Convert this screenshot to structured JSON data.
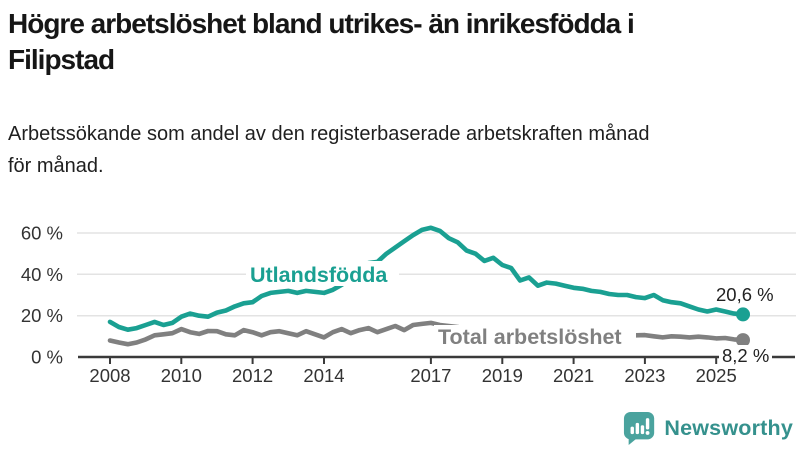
{
  "header": {
    "title_lines": [
      "Högre arbetslöshet bland utrikes- än inrikesfödda i",
      "Filipstad"
    ],
    "subtitle_lines": [
      "Arbetssökande som andel av den registerbaserade arbetskraften månad",
      "för månad."
    ]
  },
  "chart_data": {
    "type": "line",
    "title": "Högre arbetslöshet bland utrikes- än inrikesfödda i Filipstad",
    "subtitle": "Arbetssökande som andel av den registerbaserade arbetskraften månad för månad.",
    "xlabel": "",
    "ylabel": "",
    "x_unit": "year (monthly share of registered labour force, plotted quarterly)",
    "x": [
      2008.0,
      2008.25,
      2008.5,
      2008.75,
      2009.0,
      2009.25,
      2009.5,
      2009.75,
      2010.0,
      2010.25,
      2010.5,
      2010.75,
      2011.0,
      2011.25,
      2011.5,
      2011.75,
      2012.0,
      2012.25,
      2012.5,
      2012.75,
      2013.0,
      2013.25,
      2013.5,
      2013.75,
      2014.0,
      2014.25,
      2014.5,
      2014.75,
      2015.0,
      2015.25,
      2015.5,
      2015.75,
      2016.0,
      2016.25,
      2016.5,
      2016.75,
      2017.0,
      2017.25,
      2017.5,
      2017.75,
      2018.0,
      2018.25,
      2018.5,
      2018.75,
      2019.0,
      2019.25,
      2019.5,
      2019.75,
      2020.0,
      2020.25,
      2020.5,
      2020.75,
      2021.0,
      2021.25,
      2021.5,
      2021.75,
      2022.0,
      2022.25,
      2022.5,
      2022.75,
      2023.0,
      2023.25,
      2023.5,
      2023.75,
      2024.0,
      2024.25,
      2024.5,
      2024.75,
      2025.0,
      2025.25,
      2025.5,
      2025.75
    ],
    "series": [
      {
        "name": "Utlandsfödda",
        "color": "#1aa092",
        "end_label": "20,6 %",
        "end_value": 20.6,
        "values": [
          17.0,
          14.5,
          13.2,
          14.0,
          15.5,
          17.0,
          15.5,
          16.5,
          19.5,
          21.0,
          20.0,
          19.5,
          21.5,
          22.5,
          24.5,
          26.0,
          26.5,
          29.5,
          31.0,
          31.5,
          32.0,
          31.0,
          32.0,
          31.5,
          31.0,
          32.5,
          35.0,
          38.0,
          41.0,
          45.5,
          46.0,
          50.0,
          53.0,
          56.0,
          59.0,
          61.5,
          62.5,
          61.0,
          57.5,
          55.5,
          51.5,
          50.0,
          46.5,
          48.0,
          44.5,
          43.0,
          37.0,
          38.5,
          34.5,
          36.0,
          35.5,
          34.5,
          33.5,
          33.0,
          32.0,
          31.5,
          30.5,
          30.0,
          30.0,
          29.0,
          28.5,
          30.0,
          27.5,
          26.5,
          26.0,
          24.5,
          23.0,
          22.0,
          23.0,
          22.0,
          21.0,
          20.6
        ]
      },
      {
        "name": "Total arbetslöshet",
        "color": "#808080",
        "end_label": "8,2 %",
        "end_value": 8.2,
        "values": [
          8.0,
          7.0,
          6.2,
          7.0,
          8.5,
          10.5,
          11.0,
          11.5,
          13.5,
          12.0,
          11.2,
          12.6,
          12.5,
          11.0,
          10.5,
          13.0,
          12.0,
          10.5,
          12.0,
          12.5,
          11.5,
          10.5,
          12.5,
          11.0,
          9.5,
          12.0,
          13.5,
          11.5,
          13.0,
          14.0,
          12.0,
          13.5,
          15.0,
          13.0,
          15.5,
          16.0,
          16.5,
          15.5,
          15.0,
          14.5,
          13.5,
          13.0,
          12.5,
          13.0,
          12.5,
          12.0,
          11.5,
          12.0,
          12.5,
          13.5,
          13.0,
          12.5,
          12.0,
          11.5,
          11.0,
          10.5,
          10.5,
          10.0,
          10.0,
          10.5,
          10.6,
          10.0,
          9.5,
          10.0,
          9.8,
          9.5,
          9.8,
          9.5,
          9.0,
          9.2,
          8.5,
          8.2
        ]
      }
    ],
    "yticks": [
      0,
      20,
      40,
      60
    ],
    "ytick_labels": [
      "0 %",
      "20 %",
      "40 %",
      "60 %"
    ],
    "xticks": [
      2008,
      2010,
      2012,
      2014,
      2017,
      2019,
      2021,
      2023,
      2025
    ],
    "ylim": [
      0,
      65
    ],
    "xlim": [
      2007.1,
      2026.3
    ],
    "grid": "horizontal",
    "legend_position": "inline-labels",
    "grid_color": "#e3e3e3",
    "axis_color": "#3a3a3a",
    "tick_label_color": "#333333"
  },
  "footer": {
    "brand": "Newsworthy",
    "brand_color": "#35918d",
    "logo_color": "#4aa39e"
  }
}
